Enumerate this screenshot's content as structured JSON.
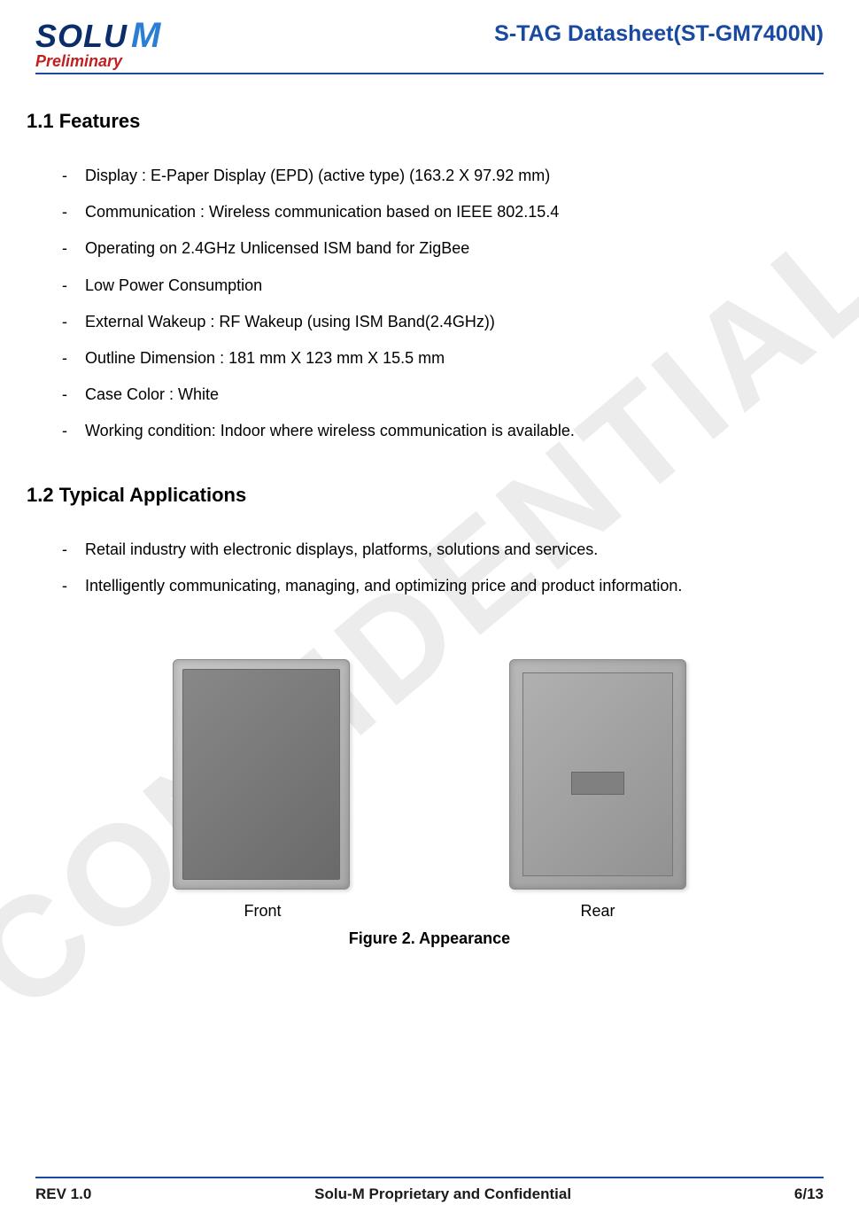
{
  "header": {
    "logo_company": "SOLU",
    "logo_suffix": "M",
    "preliminary": "Preliminary",
    "doc_title": "S-TAG Datasheet(ST-GM7400N)"
  },
  "watermark": "CONFIDENTIAL",
  "sections": {
    "features": {
      "heading": "1.1 Features",
      "items": [
        "Display : E-Paper Display (EPD) (active  type) (163.2 X 97.92 mm)",
        "Communication : Wireless communication based on IEEE 802.15.4",
        "Operating on 2.4GHz Unlicensed ISM band for ZigBee",
        "Low Power Consumption",
        "External Wakeup : RF Wakeup (using ISM Band(2.4GHz))",
        "Outline Dimension : 181 mm X 123 mm X 15.5 mm",
        "Case Color : White",
        "Working condition: Indoor where wireless communication is available."
      ]
    },
    "applications": {
      "heading": "1.2 Typical Applications",
      "items": [
        "Retail industry with electronic displays, platforms, solutions and services.",
        "Intelligently communicating, managing, and optimizing price and product information."
      ]
    }
  },
  "figure": {
    "front_label": "Front",
    "rear_label": "Rear",
    "caption": "Figure 2.   Appearance"
  },
  "footer": {
    "rev": "REV 1.0",
    "center": "Solu-M Proprietary and Confidential",
    "page": "6/13"
  },
  "colors": {
    "accent": "#1a4aa0",
    "preliminary": "#c02020",
    "logo_dark": "#0b2e6b",
    "logo_light": "#2a7fd4"
  }
}
